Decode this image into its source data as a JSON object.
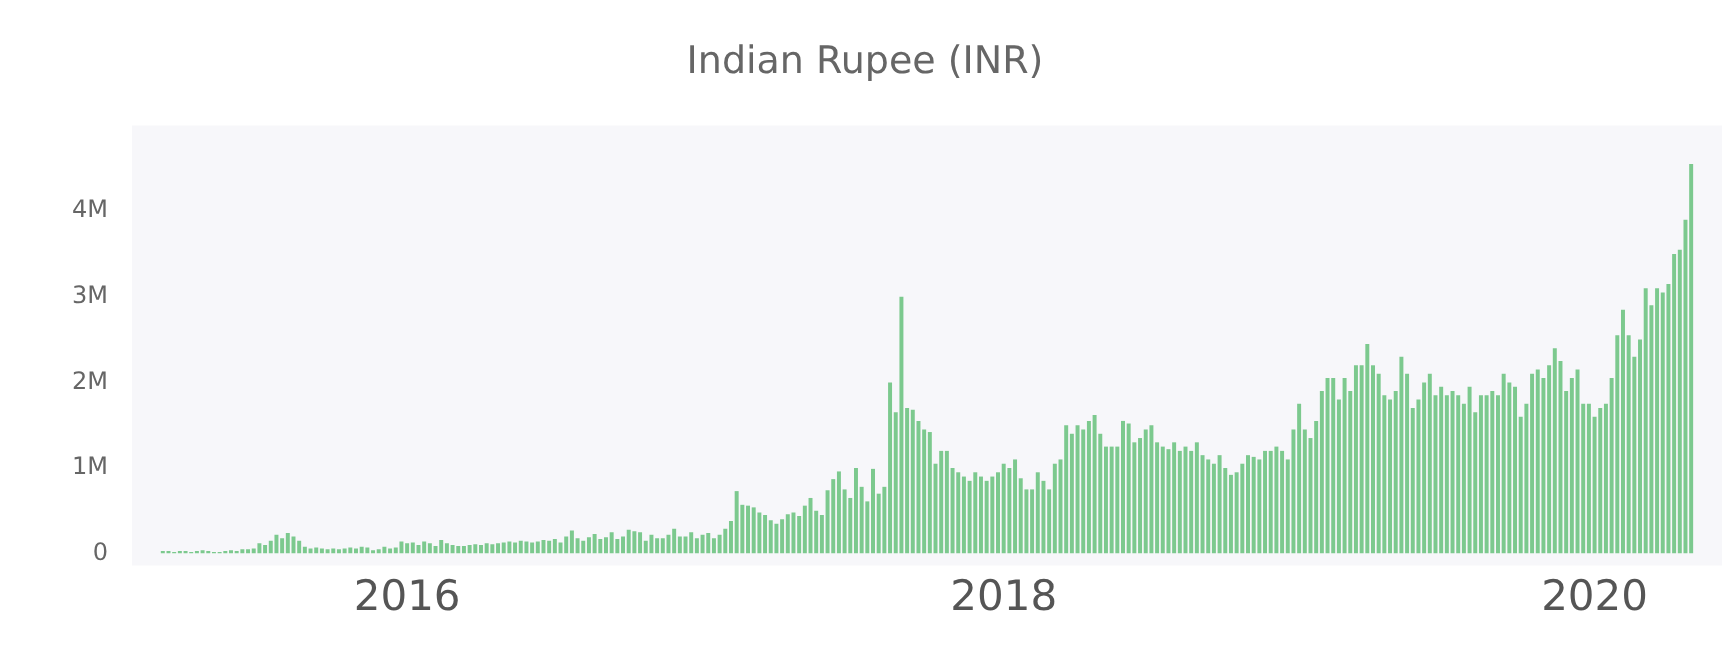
{
  "chart_data": {
    "type": "bar",
    "title": "Indian Rupee (INR)",
    "color": "#7cc98e",
    "ylim": [
      0,
      5000000
    ],
    "yticks": [
      {
        "value": 0,
        "label": "0"
      },
      {
        "value": 1000000,
        "label": "1M"
      },
      {
        "value": 2000000,
        "label": "2M"
      },
      {
        "value": 3000000,
        "label": "3M"
      },
      {
        "value": 4000000,
        "label": "4M"
      }
    ],
    "categories": [
      null,
      null,
      null,
      null,
      null,
      null,
      null,
      null,
      null,
      null,
      null,
      null,
      null,
      null,
      null,
      null,
      null,
      null,
      null,
      null,
      null,
      null,
      null,
      null,
      null,
      null,
      null,
      null,
      null,
      null,
      null,
      null,
      null,
      null,
      null,
      null,
      null,
      null,
      null,
      null,
      null,
      null,
      null,
      "2016",
      null,
      null,
      null,
      null,
      null,
      null,
      null,
      null,
      null,
      null,
      null,
      null,
      null,
      null,
      null,
      null,
      null,
      null,
      null,
      null,
      null,
      null,
      null,
      null,
      null,
      null,
      null,
      null,
      null,
      null,
      null,
      null,
      null,
      null,
      null,
      null,
      null,
      null,
      null,
      null,
      null,
      null,
      null,
      null,
      null,
      null,
      null,
      null,
      null,
      null,
      null,
      null,
      null,
      null,
      null,
      null,
      null,
      null,
      null,
      null,
      null,
      null,
      null,
      null,
      null,
      null,
      null,
      null,
      null,
      null,
      null,
      null,
      null,
      null,
      null,
      null,
      null,
      null,
      null,
      null,
      null,
      null,
      null,
      null,
      null,
      null,
      null,
      null,
      null,
      null,
      null,
      null,
      null,
      null,
      null,
      null,
      null,
      null,
      null,
      null,
      null,
      null,
      null,
      null,
      "2018",
      null,
      null,
      null,
      null,
      null,
      null,
      null,
      null,
      null,
      null,
      null,
      null,
      null,
      null,
      null,
      null,
      null,
      null,
      null,
      null,
      null,
      null,
      null,
      null,
      null,
      null,
      null,
      null,
      null,
      null,
      null,
      null,
      null,
      null,
      null,
      null,
      null,
      null,
      null,
      null,
      null,
      null,
      null,
      null,
      null,
      null,
      null,
      null,
      null,
      null,
      null,
      null,
      null,
      null,
      null,
      null,
      null,
      null,
      null,
      null,
      null,
      null,
      null,
      null,
      null,
      null,
      null,
      null,
      null,
      null,
      null,
      null,
      null,
      null,
      null,
      null,
      null,
      null,
      null,
      null,
      null,
      null,
      null,
      null,
      null,
      null,
      null,
      null,
      null,
      null,
      null,
      null,
      null,
      null,
      null,
      null,
      null,
      null,
      null,
      null,
      null,
      null,
      null,
      "2020",
      null,
      null,
      null,
      null,
      null,
      null,
      null,
      null,
      null,
      null,
      null,
      null,
      null,
      null,
      null,
      null,
      null
    ],
    "values": [
      30000,
      30000,
      20000,
      30000,
      30000,
      20000,
      30000,
      40000,
      30000,
      20000,
      20000,
      30000,
      40000,
      30000,
      50000,
      50000,
      60000,
      120000,
      100000,
      150000,
      220000,
      180000,
      240000,
      200000,
      150000,
      80000,
      60000,
      70000,
      60000,
      50000,
      60000,
      50000,
      60000,
      70000,
      60000,
      80000,
      70000,
      40000,
      50000,
      80000,
      60000,
      70000,
      140000,
      120000,
      130000,
      100000,
      140000,
      120000,
      90000,
      160000,
      120000,
      100000,
      90000,
      90000,
      100000,
      110000,
      100000,
      120000,
      110000,
      120000,
      130000,
      140000,
      130000,
      150000,
      140000,
      130000,
      140000,
      160000,
      150000,
      170000,
      130000,
      200000,
      270000,
      180000,
      150000,
      190000,
      230000,
      170000,
      190000,
      250000,
      170000,
      200000,
      280000,
      260000,
      250000,
      150000,
      220000,
      180000,
      180000,
      220000,
      290000,
      200000,
      200000,
      250000,
      180000,
      220000,
      240000,
      180000,
      220000,
      290000,
      380000,
      730000,
      570000,
      560000,
      540000,
      480000,
      450000,
      390000,
      350000,
      400000,
      460000,
      480000,
      440000,
      560000,
      650000,
      500000,
      450000,
      740000,
      870000,
      960000,
      750000,
      650000,
      1000000,
      780000,
      610000,
      990000,
      700000,
      780000,
      2000000,
      1650000,
      3000000,
      1700000,
      1680000,
      1550000,
      1450000,
      1420000,
      1050000,
      1200000,
      1200000,
      1000000,
      950000,
      900000,
      850000,
      950000,
      900000,
      850000,
      900000,
      950000,
      1050000,
      1000000,
      1100000,
      880000,
      750000,
      750000,
      950000,
      850000,
      750000,
      1050000,
      1100000,
      1500000,
      1400000,
      1500000,
      1450000,
      1550000,
      1620000,
      1400000,
      1250000,
      1250000,
      1250000,
      1550000,
      1520000,
      1300000,
      1350000,
      1450000,
      1500000,
      1300000,
      1250000,
      1220000,
      1300000,
      1200000,
      1250000,
      1200000,
      1300000,
      1150000,
      1100000,
      1050000,
      1150000,
      1000000,
      920000,
      950000,
      1050000,
      1150000,
      1130000,
      1100000,
      1200000,
      1200000,
      1250000,
      1200000,
      1100000,
      1450000,
      1750000,
      1450000,
      1350000,
      1550000,
      1900000,
      2050000,
      2050000,
      1800000,
      2050000,
      1900000,
      2200000,
      2200000,
      2450000,
      2200000,
      2100000,
      1850000,
      1800000,
      1900000,
      2300000,
      2100000,
      1700000,
      1800000,
      2000000,
      2100000,
      1850000,
      1950000,
      1850000,
      1900000,
      1850000,
      1750000,
      1950000,
      1650000,
      1850000,
      1850000,
      1900000,
      1850000,
      2100000,
      2000000,
      1950000,
      1600000,
      1750000,
      2100000,
      2150000,
      2050000,
      2200000,
      2400000,
      2250000,
      1900000,
      2050000,
      2150000,
      1750000,
      1750000,
      1600000,
      1700000,
      1750000,
      2050000,
      2550000,
      2850000,
      2550000,
      2300000,
      2500000,
      3100000,
      2900000,
      3100000,
      3050000,
      3150000,
      3500000,
      3550000,
      3900000,
      4550000
    ]
  }
}
